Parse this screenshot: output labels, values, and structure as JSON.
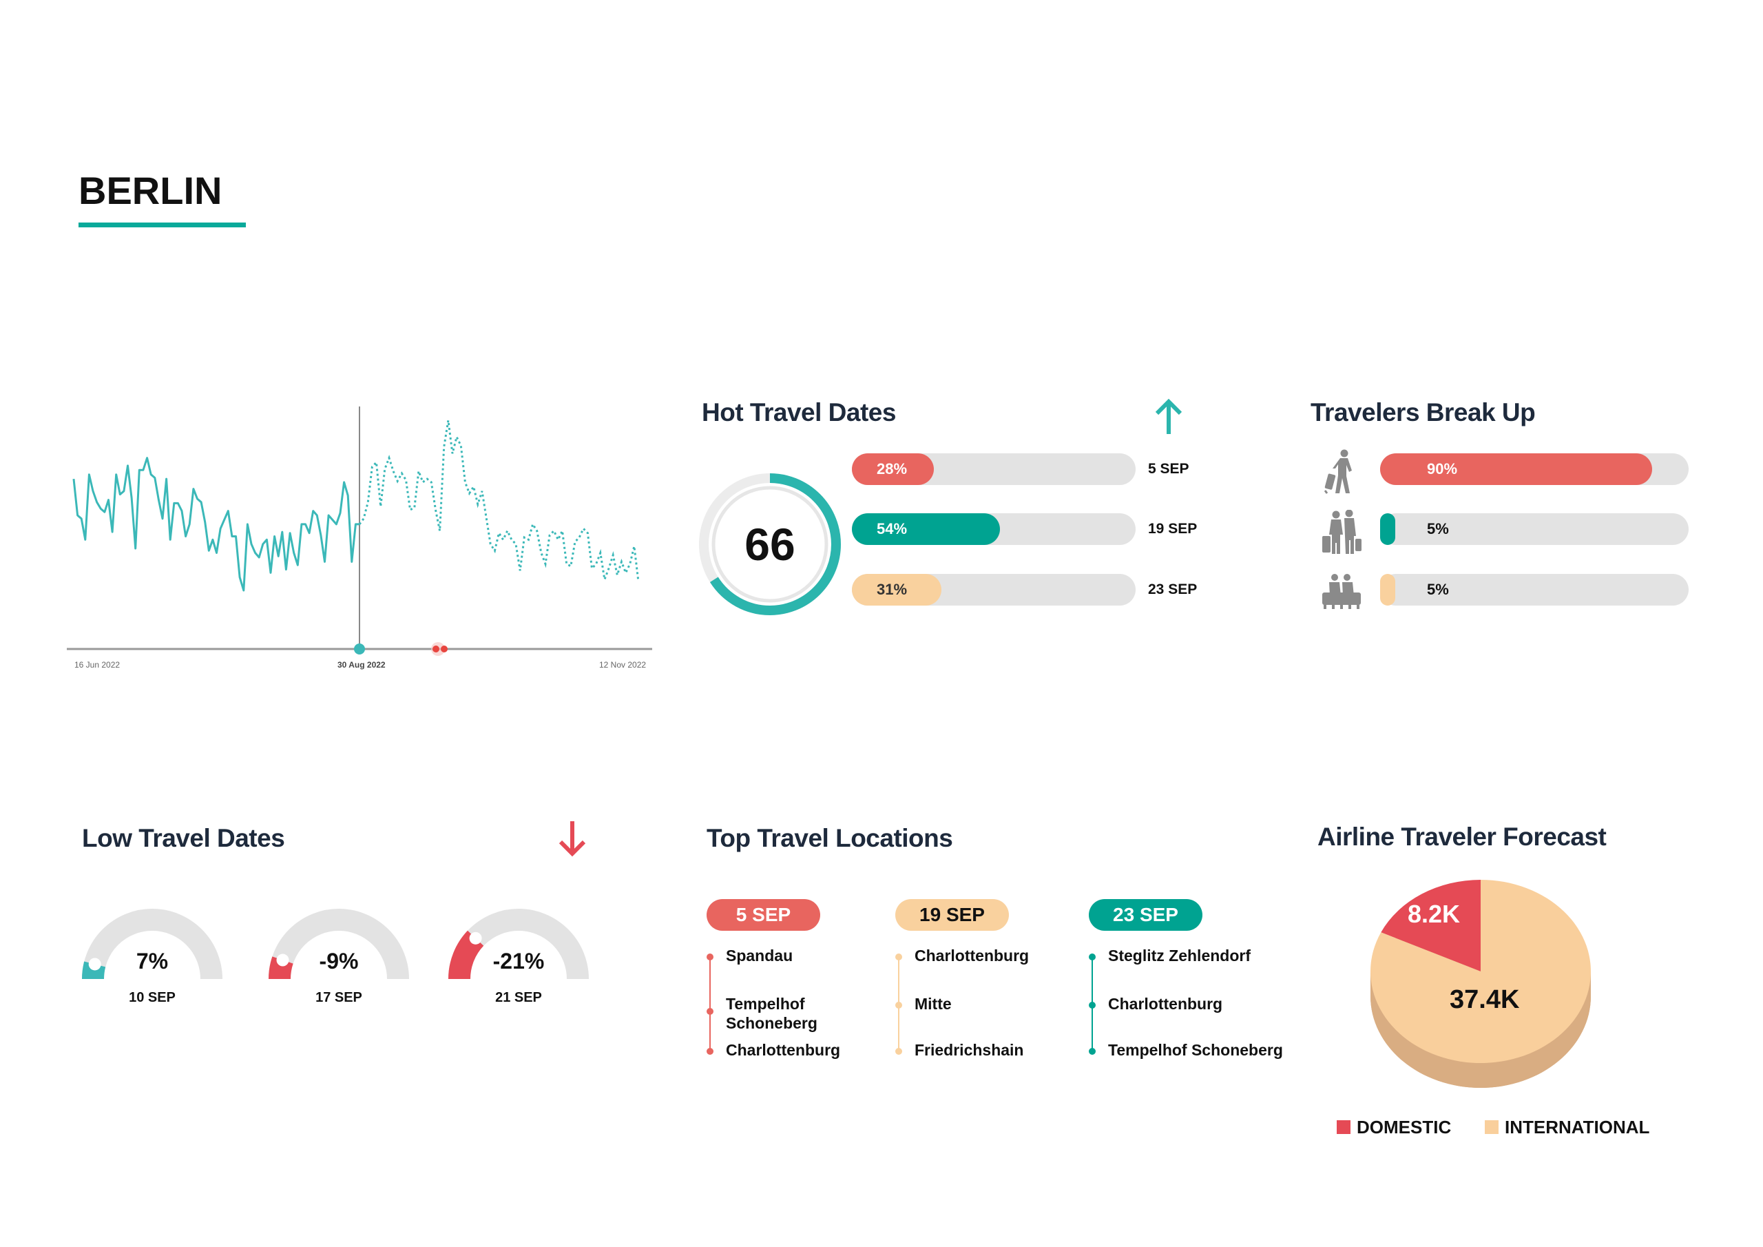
{
  "header": {
    "title": "BERLIN",
    "accent": "#0aa99a"
  },
  "colors": {
    "teal": "#3bb8b8",
    "teal_dark": "#00a391",
    "red": "#e8655f",
    "peach": "#f9d19e",
    "track": "#e3e3e3",
    "navy": "#1e2a3c",
    "pie_red": "#e54a55",
    "pie_peach": "#f9cf9c"
  },
  "chart_data": [
    {
      "type": "line",
      "x_tick_labels": [
        "16 Jun 2022",
        "30 Aug 2022",
        "12 Nov 2022"
      ],
      "highlight_tick": "30 Aug 2022",
      "series": [
        {
          "style": "solid",
          "values": [
            74.5,
            58,
            56.5,
            47,
            76.5,
            69,
            64,
            61,
            59.5,
            65,
            50.5,
            76.5,
            67.5,
            69,
            80.5,
            66,
            43,
            78.5,
            78.5,
            84,
            76.5,
            75,
            65,
            56.5,
            74.5,
            47,
            63.5,
            63.5,
            60,
            48.5,
            54,
            70,
            65.5,
            64,
            55,
            42,
            47,
            41,
            52,
            56,
            60,
            48.5,
            48.5,
            30,
            24,
            54,
            45,
            41,
            39,
            45,
            47,
            32,
            48.5,
            39.5,
            50.5,
            33.5,
            50,
            41,
            35.5,
            54,
            54,
            50,
            60,
            58,
            49,
            37,
            58,
            56,
            54,
            59,
            73,
            67,
            37,
            54,
            54
          ]
        },
        {
          "style": "dotted",
          "values": [
            56.5,
            64,
            80,
            82,
            62,
            79,
            84,
            78,
            73.5,
            77,
            74,
            60.5,
            61.5,
            78,
            73,
            74.5,
            73,
            60.5,
            51,
            89,
            101,
            86,
            93.5,
            89.5,
            73,
            68,
            71,
            63,
            69,
            57,
            45,
            42,
            50,
            47,
            51,
            47,
            45,
            33,
            48,
            47,
            54,
            51,
            41,
            36,
            49,
            51,
            47,
            51,
            36,
            35,
            46,
            48,
            52,
            50,
            34,
            36,
            41,
            29,
            34,
            40,
            31,
            37,
            32,
            36,
            44,
            28
          ]
        }
      ],
      "ylim": [
        0,
        105
      ],
      "grid": false
    },
    {
      "type": "bar",
      "title": "Hot Travel Dates",
      "trend": "up",
      "score": 66,
      "score_fraction": 0.66,
      "categories": [
        "5 SEP",
        "19 SEP",
        "23 SEP"
      ],
      "values": [
        28,
        54,
        31
      ],
      "labels": [
        "28%",
        "54%",
        "31%"
      ],
      "colors": [
        "#e8655f",
        "#00a391",
        "#f9d19e"
      ]
    },
    {
      "type": "bar",
      "title": "Travelers Break Up",
      "categories": [
        "solo-traveler-icon",
        "couple-traveler-icon",
        "family-traveler-icon"
      ],
      "values": [
        90,
        5,
        5
      ],
      "labels": [
        "90%",
        "5%",
        "5%"
      ],
      "colors": [
        "#e8655f",
        "#00a391",
        "#f9d19e"
      ]
    },
    {
      "type": "gauge",
      "title": "Low Travel Dates",
      "trend": "down",
      "categories": [
        "10 SEP",
        "17 SEP",
        "21 SEP"
      ],
      "values": [
        7,
        -9,
        -21
      ],
      "labels": [
        "7%",
        "-9%",
        "-21%"
      ],
      "colors": [
        "#3bb8b8",
        "#e54a55",
        "#e54a55"
      ]
    },
    {
      "type": "pie",
      "title": "Airline Traveler Forecast",
      "slices": [
        {
          "name": "DOMESTIC",
          "value": 8.2,
          "label": "8.2K",
          "color": "#e54a55"
        },
        {
          "name": "INTERNATIONAL",
          "value": 37.4,
          "label": "37.4K",
          "color": "#f9cf9c"
        }
      ],
      "legend": "bottom"
    }
  ],
  "locations": {
    "title": "Top Travel Locations",
    "columns": [
      {
        "date": "5 SEP",
        "color": "#e8655f",
        "text_color": "#ffffff",
        "items": [
          "Spandau",
          "Tempelhof Schoneberg",
          "Charlottenburg"
        ]
      },
      {
        "date": "19 SEP",
        "color": "#f9d19e",
        "text_color": "#111111",
        "items": [
          "Charlottenburg",
          "Mitte",
          "Friedrichshain"
        ]
      },
      {
        "date": "23 SEP",
        "color": "#00a391",
        "text_color": "#ffffff",
        "items": [
          "Steglitz Zehlendorf",
          "Charlottenburg",
          "Tempelhof Schoneberg"
        ]
      }
    ]
  }
}
